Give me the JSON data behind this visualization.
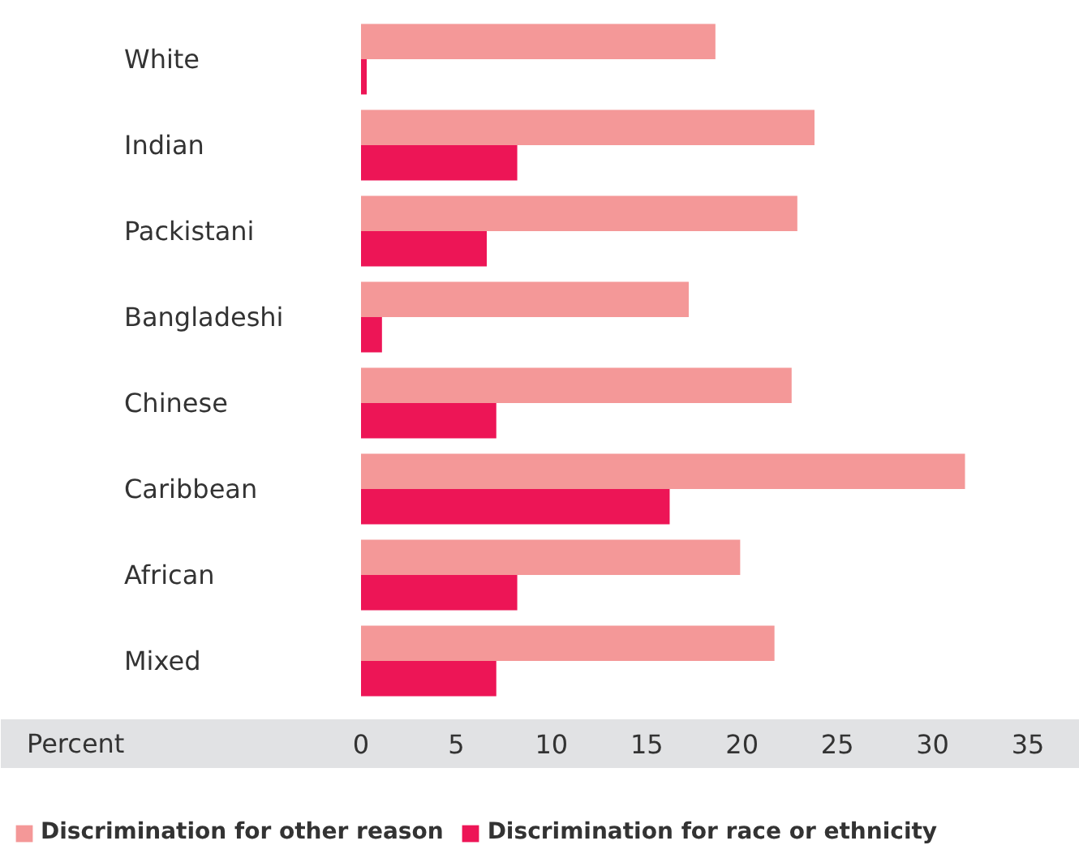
{
  "chart_data": {
    "type": "bar",
    "orientation": "horizontal",
    "xlabel": "Percent",
    "categories": [
      "White",
      "Indian",
      "Packistani",
      "Bangladeshi",
      "Chinese",
      "Caribbean",
      "African",
      "Mixed"
    ],
    "series": [
      {
        "name": "Discrimination for other reason",
        "color": "#f49898",
        "values": [
          18.6,
          23.8,
          22.9,
          17.2,
          22.6,
          31.7,
          19.9,
          21.7
        ]
      },
      {
        "name": "Discrimination for race or ethnicity",
        "color": "#ed1556",
        "values": [
          0.3,
          8.2,
          6.6,
          1.1,
          7.1,
          16.2,
          8.2,
          7.1
        ]
      }
    ],
    "xlim": [
      0,
      35
    ],
    "xticks": [
      0,
      5,
      10,
      15,
      20,
      25,
      30,
      35
    ],
    "grid": false,
    "legend": "bottom"
  }
}
